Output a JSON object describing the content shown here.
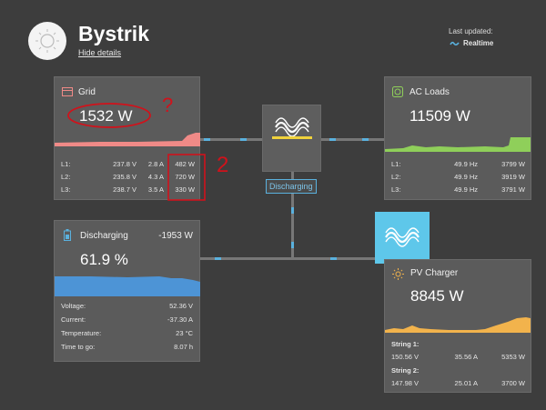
{
  "header": {
    "title": "Bystrik",
    "hide_details": "Hide details",
    "last_updated_label": "Last updated:",
    "realtime_label": "Realtime"
  },
  "grid": {
    "title": "Grid",
    "power": "1532 W",
    "annotation_mark": "?",
    "annotation_mark_2": "2",
    "phases": [
      {
        "label": "L1:",
        "voltage": "237.8 V",
        "current": "2.8 A",
        "power": "482 W"
      },
      {
        "label": "L2:",
        "voltage": "235.8 V",
        "current": "4.3 A",
        "power": "720 W"
      },
      {
        "label": "L3:",
        "voltage": "238.7 V",
        "current": "3.5 A",
        "power": "330 W"
      }
    ]
  },
  "ac_loads": {
    "title": "AC Loads",
    "power": "11509 W",
    "phases": [
      {
        "label": "L1:",
        "frequency": "49.9 Hz",
        "power": "3799 W"
      },
      {
        "label": "L2:",
        "frequency": "49.9 Hz",
        "power": "3919 W"
      },
      {
        "label": "L3:",
        "frequency": "49.9 Hz",
        "power": "3791 W"
      }
    ]
  },
  "inverter": {
    "status_badge": "Discharging"
  },
  "battery": {
    "title": "Discharging",
    "power": "-1953 W",
    "soc": "61.9 %",
    "rows": [
      {
        "label": "Voltage:",
        "value": "52.36 V"
      },
      {
        "label": "Current:",
        "value": "-37.30 A"
      },
      {
        "label": "Temperature:",
        "value": "23 °C"
      },
      {
        "label": "Time to go:",
        "value": "8.07 h"
      }
    ]
  },
  "pv_charger": {
    "title": "PV Charger",
    "power": "8845 W",
    "strings": [
      {
        "label": "String 1:",
        "voltage": "150.56 V",
        "current": "35.56 A",
        "power": "5353 W"
      },
      {
        "label": "String 2:",
        "voltage": "147.98 V",
        "current": "25.01 A",
        "power": "3700 W"
      }
    ]
  },
  "colors": {
    "background": "#3d3d3d",
    "card": "#5b5b5b",
    "grid_graph": "#f08a87",
    "ac_graph": "#8fcf5a",
    "battery_graph": "#4d94d6",
    "pv_graph": "#f2b34c",
    "flow_dash": "#5ab1de",
    "annotation": "#d0121b"
  }
}
